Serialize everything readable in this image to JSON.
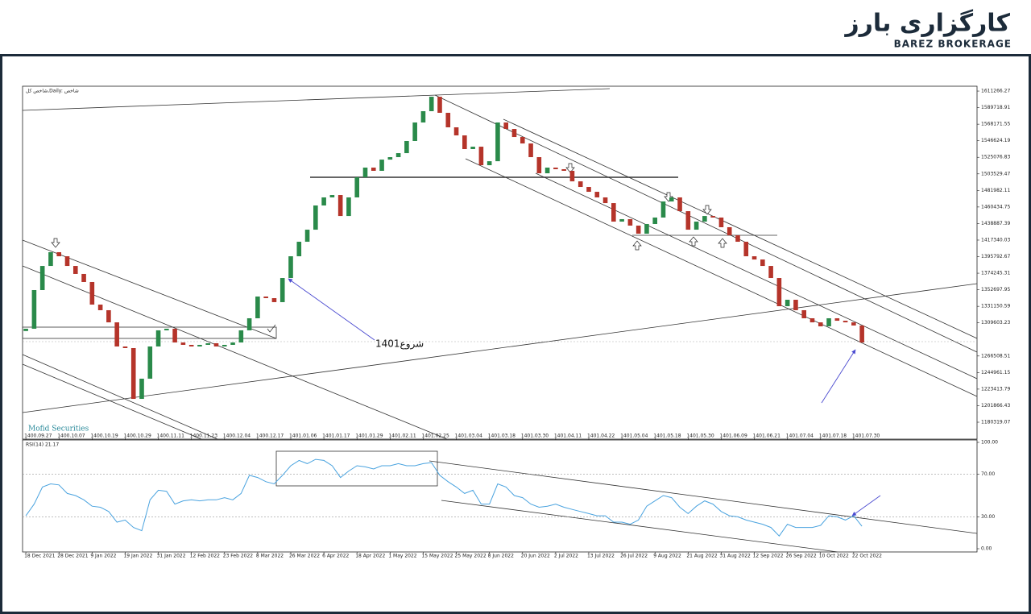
{
  "header": {
    "logo_text": "کارگزاری بارز",
    "logo_subtitle": "BAREZ BROKERAGE"
  },
  "chart_data": [
    {
      "type": "candlestick",
      "title": "شاخص کل,Daily: شاخص",
      "annotation": "شروع1401",
      "watermark": "Mofid Securities",
      "up_color": "#2a8a4a",
      "down_color": "#b5342a",
      "xlim": [
        -0.4,
        114.9
      ],
      "ylim": [
        1158300,
        1617600
      ],
      "yticks": [
        1611266.27,
        1589718.91,
        1568171.55,
        1546624.19,
        1525076.83,
        1503529.47,
        1481982.11,
        1460434.75,
        1438887.39,
        1417340.03,
        1395792.67,
        1374245.31,
        1352697.95,
        1331150.59,
        1309603.23,
        1266508.51,
        1244961.15,
        1223413.79,
        1201866.43,
        1180319.07
      ],
      "xticks": [
        {
          "value": 0,
          "label": "1400.09.27"
        },
        {
          "value": 4,
          "label": "1400.10.07"
        },
        {
          "value": 8,
          "label": "1400.10.19"
        },
        {
          "value": 12,
          "label": "1400.10.29"
        },
        {
          "value": 16,
          "label": "1400.11.11"
        },
        {
          "value": 20,
          "label": "1400.11.23"
        },
        {
          "value": 24,
          "label": "1400.12.04"
        },
        {
          "value": 28,
          "label": "1400.12.17"
        },
        {
          "value": 32,
          "label": "1401.01.06"
        },
        {
          "value": 36,
          "label": "1401.01.17"
        },
        {
          "value": 40,
          "label": "1401.01.29"
        },
        {
          "value": 44,
          "label": "1401.02.11"
        },
        {
          "value": 48,
          "label": "1401.02.25"
        },
        {
          "value": 52,
          "label": "1401.03.04"
        },
        {
          "value": 56,
          "label": "1401.03.18"
        },
        {
          "value": 60,
          "label": "1401.03.30"
        },
        {
          "value": 64,
          "label": "1401.04.11"
        },
        {
          "value": 68,
          "label": "1401.04.22"
        },
        {
          "value": 72,
          "label": "1401.05.04"
        },
        {
          "value": 76,
          "label": "1401.05.18"
        },
        {
          "value": 80,
          "label": "1401.05.30"
        },
        {
          "value": 84,
          "label": "1401.06.09"
        },
        {
          "value": 88,
          "label": "1401.06.21"
        },
        {
          "value": 92,
          "label": "1401.07.04"
        },
        {
          "value": 96,
          "label": "1401.07.18"
        },
        {
          "value": 100,
          "label": "1401.07.30"
        }
      ],
      "open": [
        1299000,
        1302000,
        1352300,
        1383700,
        1401600,
        1396300,
        1383700,
        1373300,
        1362800,
        1333400,
        1326100,
        1310300,
        1278900,
        1276800,
        1210700,
        1237000,
        1278900,
        1299900,
        1302000,
        1284100,
        1281000,
        1278900,
        1281000,
        1283100,
        1278900,
        1281000,
        1284100,
        1299900,
        1315600,
        1343900,
        1341800,
        1336600,
        1368000,
        1396300,
        1415200,
        1430900,
        1462400,
        1472900,
        1476000,
        1448700,
        1472900,
        1499100,
        1511700,
        1507500,
        1522100,
        1525300,
        1530500,
        1546300,
        1570400,
        1585100,
        1603900,
        1583000,
        1564100,
        1553600,
        1535800,
        1538900,
        1514800,
        1520000,
        1570400,
        1562000,
        1551500,
        1543100,
        1525300,
        1504300,
        1511700,
        1509600,
        1507500,
        1493800,
        1486500,
        1480200,
        1472900,
        1465500,
        1441400,
        1444600,
        1436200,
        1425700,
        1438300,
        1446700,
        1467600,
        1472900,
        1455000,
        1430900,
        1441400,
        1448700,
        1446700,
        1434100,
        1423600,
        1415200,
        1396300,
        1392100,
        1383700,
        1368000,
        1331300,
        1339700,
        1326100,
        1315600,
        1310300,
        1305100,
        1315600,
        1312400,
        1310300,
        1306200
      ],
      "close": [
        1302000,
        1352300,
        1383700,
        1401600,
        1396300,
        1383700,
        1373300,
        1362800,
        1333400,
        1326100,
        1310300,
        1278900,
        1276800,
        1210700,
        1237000,
        1278900,
        1299900,
        1302000,
        1284100,
        1281000,
        1278900,
        1281000,
        1283100,
        1278900,
        1281000,
        1284100,
        1299900,
        1315600,
        1343900,
        1341800,
        1336600,
        1368000,
        1396300,
        1415200,
        1430900,
        1462400,
        1472900,
        1476000,
        1448700,
        1472900,
        1499100,
        1511700,
        1507500,
        1522100,
        1525300,
        1530500,
        1546300,
        1570400,
        1585100,
        1603900,
        1583000,
        1564100,
        1553600,
        1535800,
        1538900,
        1514800,
        1520000,
        1570400,
        1562000,
        1551500,
        1543100,
        1525300,
        1504300,
        1511700,
        1509600,
        1507500,
        1493800,
        1486500,
        1480200,
        1472900,
        1465500,
        1441400,
        1444600,
        1436200,
        1425700,
        1438300,
        1446700,
        1467600,
        1472900,
        1455000,
        1430900,
        1441400,
        1448700,
        1446700,
        1434100,
        1423600,
        1415200,
        1396300,
        1392100,
        1383700,
        1368000,
        1331300,
        1339700,
        1326100,
        1315600,
        1310300,
        1305100,
        1315600,
        1312400,
        1310300,
        1306200,
        1284100
      ]
    },
    {
      "type": "line",
      "title": "RSI(14) 21.17",
      "color": "#4aa3df",
      "xlim": [
        -0.4,
        114.9
      ],
      "ylim": [
        0,
        100
      ],
      "yticks": [
        {
          "value": 100,
          "label": "100.00"
        },
        {
          "value": 70,
          "label": "70.00"
        },
        {
          "value": 30,
          "label": "30.00"
        },
        {
          "value": 0,
          "label": "0.00"
        }
      ],
      "levels": [
        70,
        30
      ],
      "xticks": [
        {
          "value": 0,
          "label": "18 Dec 2021"
        },
        {
          "value": 4,
          "label": "28 Dec 2021"
        },
        {
          "value": 8,
          "label": "9 Jan 2022"
        },
        {
          "value": 12,
          "label": "19 Jan 2022"
        },
        {
          "value": 16,
          "label": "31 Jan 2022"
        },
        {
          "value": 20,
          "label": "12 Feb 2022"
        },
        {
          "value": 24,
          "label": "23 Feb 2022"
        },
        {
          "value": 28,
          "label": "8 Mar 2022"
        },
        {
          "value": 32,
          "label": "26 Mar 2022"
        },
        {
          "value": 36,
          "label": "6 Apr 2022"
        },
        {
          "value": 40,
          "label": "18 Apr 2022"
        },
        {
          "value": 44,
          "label": "1 May 2022"
        },
        {
          "value": 48,
          "label": "15 May 2022"
        },
        {
          "value": 52,
          "label": "25 May 2022"
        },
        {
          "value": 56,
          "label": "8 Jun 2022"
        },
        {
          "value": 60,
          "label": "20 Jun 2022"
        },
        {
          "value": 64,
          "label": "2 Jul 2022"
        },
        {
          "value": 68,
          "label": "13 Jul 2022"
        },
        {
          "value": 72,
          "label": "26 Jul 2022"
        },
        {
          "value": 76,
          "label": "9 Aug 2022"
        },
        {
          "value": 80,
          "label": "21 Aug 2022"
        },
        {
          "value": 84,
          "label": "31 Aug 2022"
        },
        {
          "value": 88,
          "label": "12 Sep 2022"
        },
        {
          "value": 92,
          "label": "26 Sep 2022"
        },
        {
          "value": 96,
          "label": "10 Oct 2022"
        },
        {
          "value": 100,
          "label": "22 Oct 2022"
        }
      ],
      "values": [
        31,
        42,
        58,
        61,
        60,
        52,
        50,
        46,
        40,
        39,
        35,
        25,
        27,
        20,
        17,
        46,
        55,
        54,
        42,
        45,
        46,
        45,
        46,
        46,
        48,
        46,
        52,
        69,
        67,
        63,
        61,
        69,
        78,
        83,
        80,
        84,
        83,
        78,
        67,
        73,
        78,
        77,
        75,
        78,
        78,
        80,
        78,
        78,
        80,
        81,
        69,
        63,
        58,
        52,
        55,
        42,
        42,
        61,
        58,
        50,
        48,
        42,
        39,
        40,
        42,
        39,
        37,
        35,
        33,
        31,
        31,
        25,
        25,
        23,
        27,
        40,
        45,
        50,
        48,
        39,
        33,
        40,
        45,
        42,
        35,
        31,
        30,
        27,
        25,
        23,
        20,
        12,
        23,
        20,
        20,
        20,
        22,
        31,
        30,
        27,
        31,
        21.17
      ]
    }
  ]
}
